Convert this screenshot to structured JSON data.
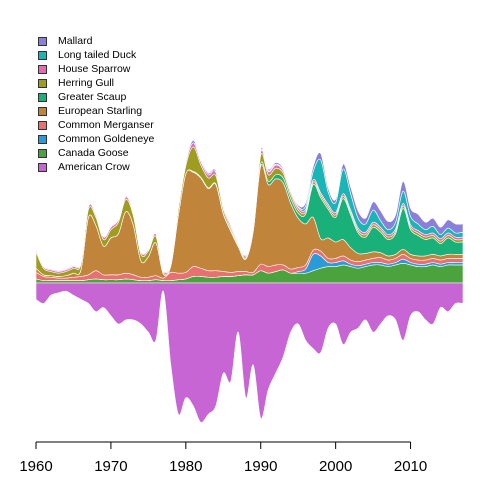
{
  "chart_data": {
    "type": "area",
    "subtype": "streamgraph",
    "x_ticks": [
      "1960",
      "1970",
      "1980",
      "1990",
      "2000",
      "2010"
    ],
    "xlim": [
      1960,
      2017
    ],
    "legend_position": "top-left",
    "grid": false,
    "years": [
      1960,
      1961,
      1962,
      1963,
      1964,
      1965,
      1966,
      1967,
      1968,
      1969,
      1970,
      1971,
      1972,
      1973,
      1974,
      1975,
      1976,
      1977,
      1978,
      1979,
      1980,
      1981,
      1982,
      1983,
      1984,
      1985,
      1986,
      1987,
      1988,
      1989,
      1990,
      1991,
      1992,
      1993,
      1994,
      1995,
      1996,
      1997,
      1998,
      1999,
      2000,
      2001,
      2002,
      2003,
      2004,
      2005,
      2006,
      2007,
      2008,
      2009,
      2010,
      2011,
      2012,
      2013,
      2014,
      2015,
      2016,
      2017
    ],
    "series": [
      {
        "name": "Mallard",
        "color": "#8b7fdc",
        "values": [
          1,
          1,
          1,
          1,
          1,
          1,
          1,
          1,
          1,
          1,
          1,
          1,
          1,
          1,
          1,
          1,
          1,
          1,
          1,
          1,
          2,
          3,
          2,
          2,
          2,
          1,
          1,
          1,
          1,
          1,
          2,
          2,
          2,
          2,
          2,
          2,
          4,
          6,
          8,
          5,
          4,
          6,
          8,
          9,
          7,
          10,
          12,
          10,
          9,
          12,
          10,
          12,
          9,
          10,
          9,
          10,
          11,
          10
        ]
      },
      {
        "name": "Long tailed Duck",
        "color": "#1ab5b5",
        "values": [
          0,
          0,
          0,
          0,
          0,
          0,
          0,
          0,
          0,
          0,
          0,
          0,
          0,
          0,
          0,
          0,
          0,
          0,
          0,
          0,
          0,
          0,
          0,
          0,
          0,
          0,
          0,
          0,
          0,
          0,
          1,
          1,
          1,
          1,
          1,
          1,
          4,
          10,
          40,
          15,
          12,
          30,
          20,
          12,
          10,
          15,
          8,
          6,
          8,
          15,
          10,
          8,
          6,
          8,
          5,
          6,
          5,
          6
        ]
      },
      {
        "name": "House Sparrow",
        "color": "#e66ab0",
        "values": [
          3,
          2,
          2,
          2,
          2,
          2,
          2,
          3,
          3,
          3,
          3,
          3,
          3,
          3,
          3,
          2,
          3,
          2,
          2,
          3,
          4,
          5,
          4,
          4,
          4,
          3,
          3,
          2,
          2,
          2,
          4,
          4,
          4,
          3,
          3,
          3,
          3,
          3,
          3,
          3,
          3,
          3,
          3,
          3,
          3,
          3,
          3,
          3,
          3,
          3,
          3,
          3,
          3,
          3,
          3,
          3,
          3,
          3
        ]
      },
      {
        "name": "Herring Gull",
        "color": "#9e9d20",
        "values": [
          20,
          8,
          5,
          4,
          5,
          6,
          7,
          10,
          10,
          8,
          10,
          14,
          15,
          12,
          8,
          7,
          8,
          2,
          3,
          8,
          10,
          30,
          15,
          12,
          10,
          5,
          3,
          2,
          2,
          2,
          10,
          8,
          8,
          6,
          5,
          4,
          3,
          3,
          3,
          3,
          3,
          3,
          3,
          3,
          3,
          3,
          3,
          3,
          3,
          3,
          3,
          3,
          3,
          3,
          3,
          3,
          3,
          3
        ]
      },
      {
        "name": "Greater Scaup",
        "color": "#1ab07a",
        "values": [
          0,
          0,
          0,
          0,
          0,
          0,
          0,
          0,
          0,
          0,
          0,
          0,
          0,
          0,
          0,
          0,
          0,
          0,
          0,
          0,
          0,
          1,
          1,
          1,
          1,
          1,
          1,
          1,
          1,
          2,
          3,
          4,
          5,
          6,
          6,
          6,
          12,
          40,
          50,
          35,
          30,
          50,
          40,
          25,
          20,
          30,
          25,
          20,
          25,
          50,
          30,
          25,
          20,
          20,
          15,
          20,
          15,
          15
        ]
      },
      {
        "name": "European Starling",
        "color": "#c0843a",
        "values": [
          5,
          2,
          2,
          2,
          3,
          5,
          8,
          70,
          55,
          35,
          45,
          50,
          75,
          60,
          20,
          25,
          40,
          5,
          8,
          70,
          120,
          115,
          110,
          100,
          105,
          70,
          50,
          30,
          15,
          50,
          120,
          100,
          105,
          100,
          80,
          60,
          50,
          40,
          15,
          25,
          20,
          20,
          15,
          10,
          8,
          8,
          6,
          5,
          5,
          6,
          5,
          5,
          5,
          5,
          5,
          5,
          5,
          5
        ]
      },
      {
        "name": "Common Merganser",
        "color": "#e87070",
        "values": [
          8,
          5,
          4,
          3,
          3,
          4,
          5,
          6,
          10,
          6,
          6,
          6,
          7,
          6,
          4,
          4,
          5,
          3,
          10,
          8,
          8,
          12,
          10,
          8,
          8,
          6,
          5,
          5,
          4,
          3,
          8,
          8,
          8,
          6,
          5,
          5,
          5,
          5,
          6,
          5,
          5,
          6,
          5,
          5,
          5,
          5,
          6,
          5,
          5,
          6,
          5,
          5,
          5,
          5,
          5,
          5,
          5,
          5
        ]
      },
      {
        "name": "Common Goldeneye",
        "color": "#2a9ad8",
        "values": [
          0,
          0,
          0,
          0,
          0,
          0,
          0,
          0,
          0,
          0,
          0,
          0,
          0,
          0,
          0,
          0,
          0,
          0,
          0,
          0,
          0,
          0,
          0,
          0,
          0,
          0,
          0,
          0,
          0,
          0,
          0,
          0,
          0,
          0,
          0,
          2,
          5,
          20,
          15,
          5,
          5,
          5,
          3,
          3,
          3,
          3,
          3,
          3,
          3,
          5,
          3,
          3,
          3,
          3,
          3,
          3,
          3,
          3
        ]
      },
      {
        "name": "Canada Goose",
        "color": "#4aa33c",
        "values": [
          5,
          3,
          3,
          3,
          3,
          3,
          3,
          4,
          5,
          4,
          4,
          4,
          5,
          4,
          3,
          3,
          4,
          3,
          3,
          4,
          5,
          8,
          8,
          7,
          7,
          8,
          8,
          9,
          10,
          10,
          15,
          12,
          14,
          16,
          12,
          12,
          12,
          15,
          18,
          20,
          20,
          22,
          20,
          18,
          20,
          22,
          22,
          20,
          22,
          24,
          22,
          20,
          20,
          22,
          20,
          22,
          22,
          22
        ]
      },
      {
        "name": "American Crow",
        "color": "#c765d4",
        "values": [
          20,
          25,
          15,
          12,
          10,
          15,
          20,
          25,
          35,
          30,
          40,
          50,
          45,
          45,
          50,
          60,
          70,
          10,
          100,
          160,
          140,
          150,
          170,
          160,
          150,
          110,
          120,
          60,
          140,
          100,
          165,
          130,
          110,
          90,
          60,
          50,
          70,
          80,
          85,
          55,
          50,
          75,
          60,
          55,
          45,
          60,
          50,
          40,
          45,
          70,
          40,
          35,
          45,
          50,
          30,
          35,
          25,
          25
        ]
      }
    ]
  }
}
